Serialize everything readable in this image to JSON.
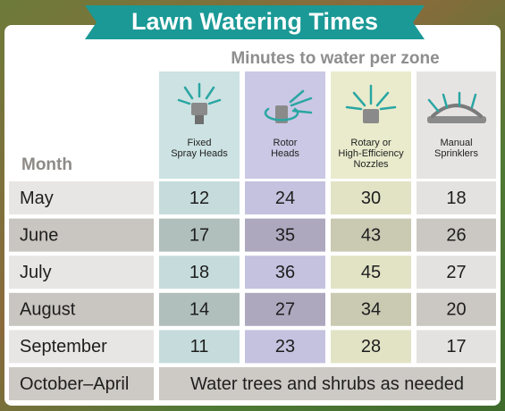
{
  "title": "Lawn Watering Times",
  "subtitle": "Minutes to water per zone",
  "table": {
    "header": {
      "month": "Month",
      "columns": [
        [
          "Fixed",
          "Spray Heads"
        ],
        [
          "Rotor",
          "Heads"
        ],
        [
          "Rotary or",
          "High-Efficiency",
          "Nozzles"
        ],
        [
          "Manual",
          "Sprinklers"
        ]
      ]
    },
    "rows": [
      [
        "May",
        12,
        24,
        30,
        18
      ],
      [
        "June",
        17,
        35,
        43,
        26
      ],
      [
        "July",
        18,
        36,
        45,
        27
      ],
      [
        "August",
        14,
        27,
        34,
        20
      ],
      [
        "September",
        11,
        23,
        28,
        17
      ]
    ],
    "note_row": {
      "month": "October–April",
      "note": "Water trees and shrubs as needed"
    }
  }
}
